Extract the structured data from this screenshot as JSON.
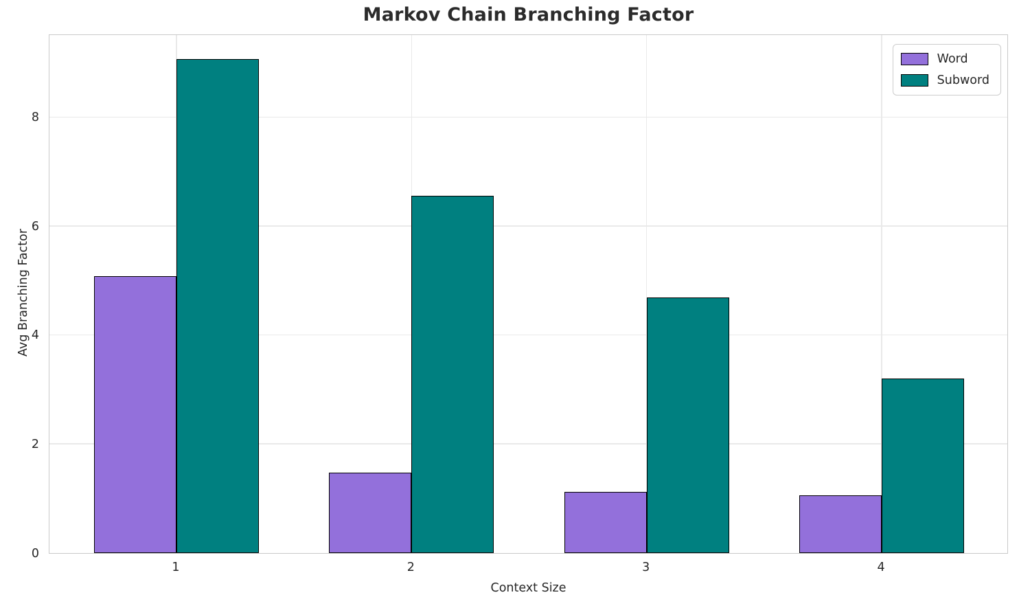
{
  "chart_data": {
    "type": "bar",
    "title": "Markov Chain Branching Factor",
    "xlabel": "Context Size",
    "ylabel": "Avg Branching Factor",
    "categories": [
      "1",
      "2",
      "3",
      "4"
    ],
    "series": [
      {
        "name": "Word",
        "color": "#9370db",
        "values": [
          5.08,
          1.47,
          1.12,
          1.06
        ]
      },
      {
        "name": "Subword",
        "color": "#008080",
        "values": [
          9.05,
          6.55,
          4.68,
          3.2
        ]
      }
    ],
    "ylim": [
      0,
      9.52
    ],
    "xlim": [
      0.46,
      4.54
    ],
    "yticks": [
      0,
      2,
      4,
      6,
      8
    ],
    "bar_width": 0.35,
    "grid": true,
    "grid_color": "#e9e9e9",
    "spine_color": "#c9c9c9",
    "bar_edge_color": "#000000",
    "legend_position": "upper right",
    "text_color": "#262626",
    "title_color": "#2b2b2b"
  }
}
